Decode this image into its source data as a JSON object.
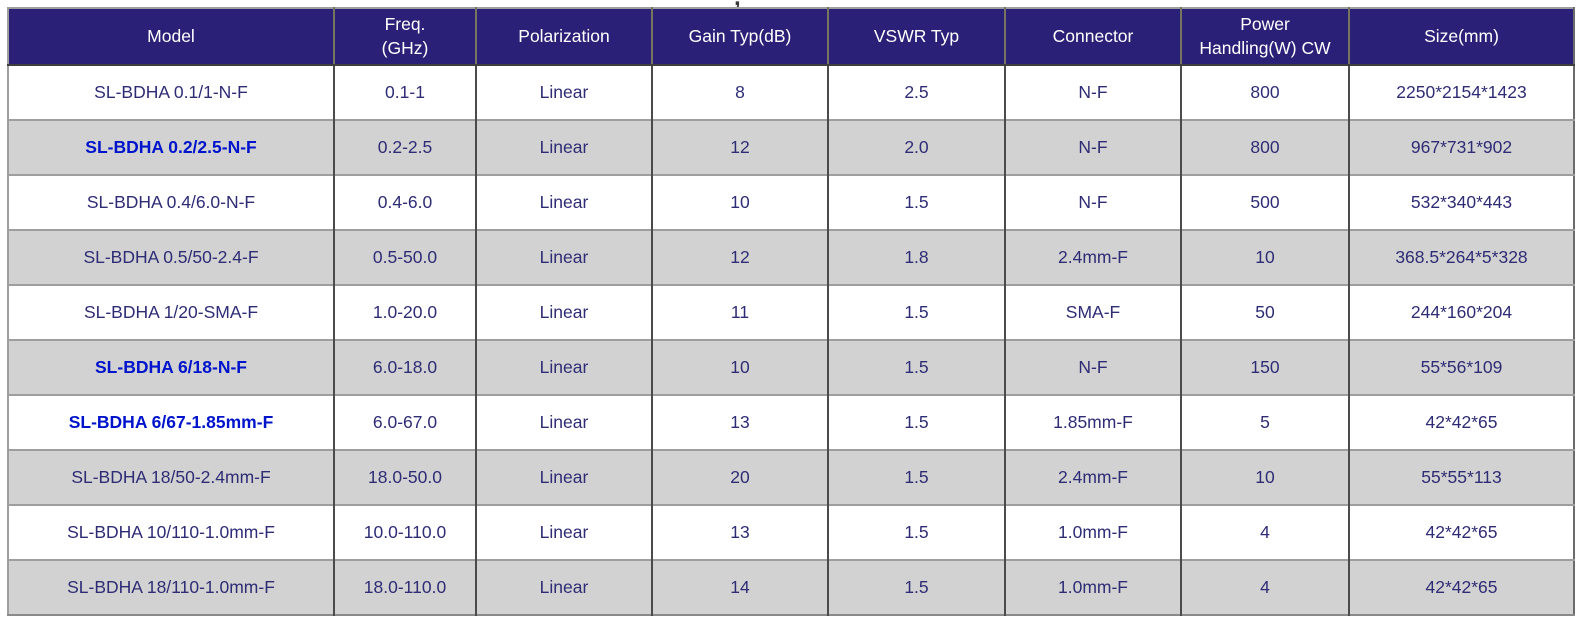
{
  "page": {
    "background": "#ffffff",
    "title_fragment": ","
  },
  "table": {
    "header_bg": "#2b2077",
    "header_text_color": "#ffffff",
    "cell_text_color": "#2e2c75",
    "highlight_text_color": "#0014cc",
    "alt_row_bg": "#d2d2d2",
    "columns": [
      {
        "key": "model",
        "label": "Model"
      },
      {
        "key": "freq",
        "label": "Freq.\n(GHz)"
      },
      {
        "key": "polarization",
        "label": "Polarization"
      },
      {
        "key": "gain",
        "label": "Gain Typ(dB)"
      },
      {
        "key": "vswr",
        "label": "VSWR Typ"
      },
      {
        "key": "connector",
        "label": "Connector"
      },
      {
        "key": "power",
        "label": "Power\nHandling(W) CW"
      },
      {
        "key": "size",
        "label": "Size(mm)"
      }
    ],
    "rows": [
      {
        "model": "SL-BDHA 0.1/1-N-F",
        "freq": "0.1-1",
        "polarization": "Linear",
        "gain": "8",
        "vswr": "2.5",
        "connector": "N-F",
        "power": "800",
        "size": "2250*2154*1423",
        "highlight": false
      },
      {
        "model": "SL-BDHA 0.2/2.5-N-F",
        "freq": "0.2-2.5",
        "polarization": "Linear",
        "gain": "12",
        "vswr": "2.0",
        "connector": "N-F",
        "power": "800",
        "size": "967*731*902",
        "highlight": true
      },
      {
        "model": "SL-BDHA 0.4/6.0-N-F",
        "freq": "0.4-6.0",
        "polarization": "Linear",
        "gain": "10",
        "vswr": "1.5",
        "connector": "N-F",
        "power": "500",
        "size": "532*340*443",
        "highlight": false
      },
      {
        "model": "SL-BDHA 0.5/50-2.4-F",
        "freq": "0.5-50.0",
        "polarization": "Linear",
        "gain": "12",
        "vswr": "1.8",
        "connector": "2.4mm-F",
        "power": "10",
        "size": "368.5*264*5*328",
        "highlight": false
      },
      {
        "model": "SL-BDHA 1/20-SMA-F",
        "freq": "1.0-20.0",
        "polarization": "Linear",
        "gain": "11",
        "vswr": "1.5",
        "connector": "SMA-F",
        "power": "50",
        "size": "244*160*204",
        "highlight": false
      },
      {
        "model": "SL-BDHA 6/18-N-F",
        "freq": "6.0-18.0",
        "polarization": "Linear",
        "gain": "10",
        "vswr": "1.5",
        "connector": "N-F",
        "power": "150",
        "size": "55*56*109",
        "highlight": true
      },
      {
        "model": "SL-BDHA 6/67-1.85mm-F",
        "freq": "6.0-67.0",
        "polarization": "Linear",
        "gain": "13",
        "vswr": "1.5",
        "connector": "1.85mm-F",
        "power": "5",
        "size": "42*42*65",
        "highlight": true
      },
      {
        "model": "SL-BDHA 18/50-2.4mm-F",
        "freq": "18.0-50.0",
        "polarization": "Linear",
        "gain": "20",
        "vswr": "1.5",
        "connector": "2.4mm-F",
        "power": "10",
        "size": "55*55*113",
        "highlight": false
      },
      {
        "model": "SL-BDHA 10/110-1.0mm-F",
        "freq": "10.0-110.0",
        "polarization": "Linear",
        "gain": "13",
        "vswr": "1.5",
        "connector": "1.0mm-F",
        "power": "4",
        "size": "42*42*65",
        "highlight": false
      },
      {
        "model": "SL-BDHA 18/110-1.0mm-F",
        "freq": "18.0-110.0",
        "polarization": "Linear",
        "gain": "14",
        "vswr": "1.5",
        "connector": "1.0mm-F",
        "power": "4",
        "size": "42*42*65",
        "highlight": false
      }
    ]
  }
}
